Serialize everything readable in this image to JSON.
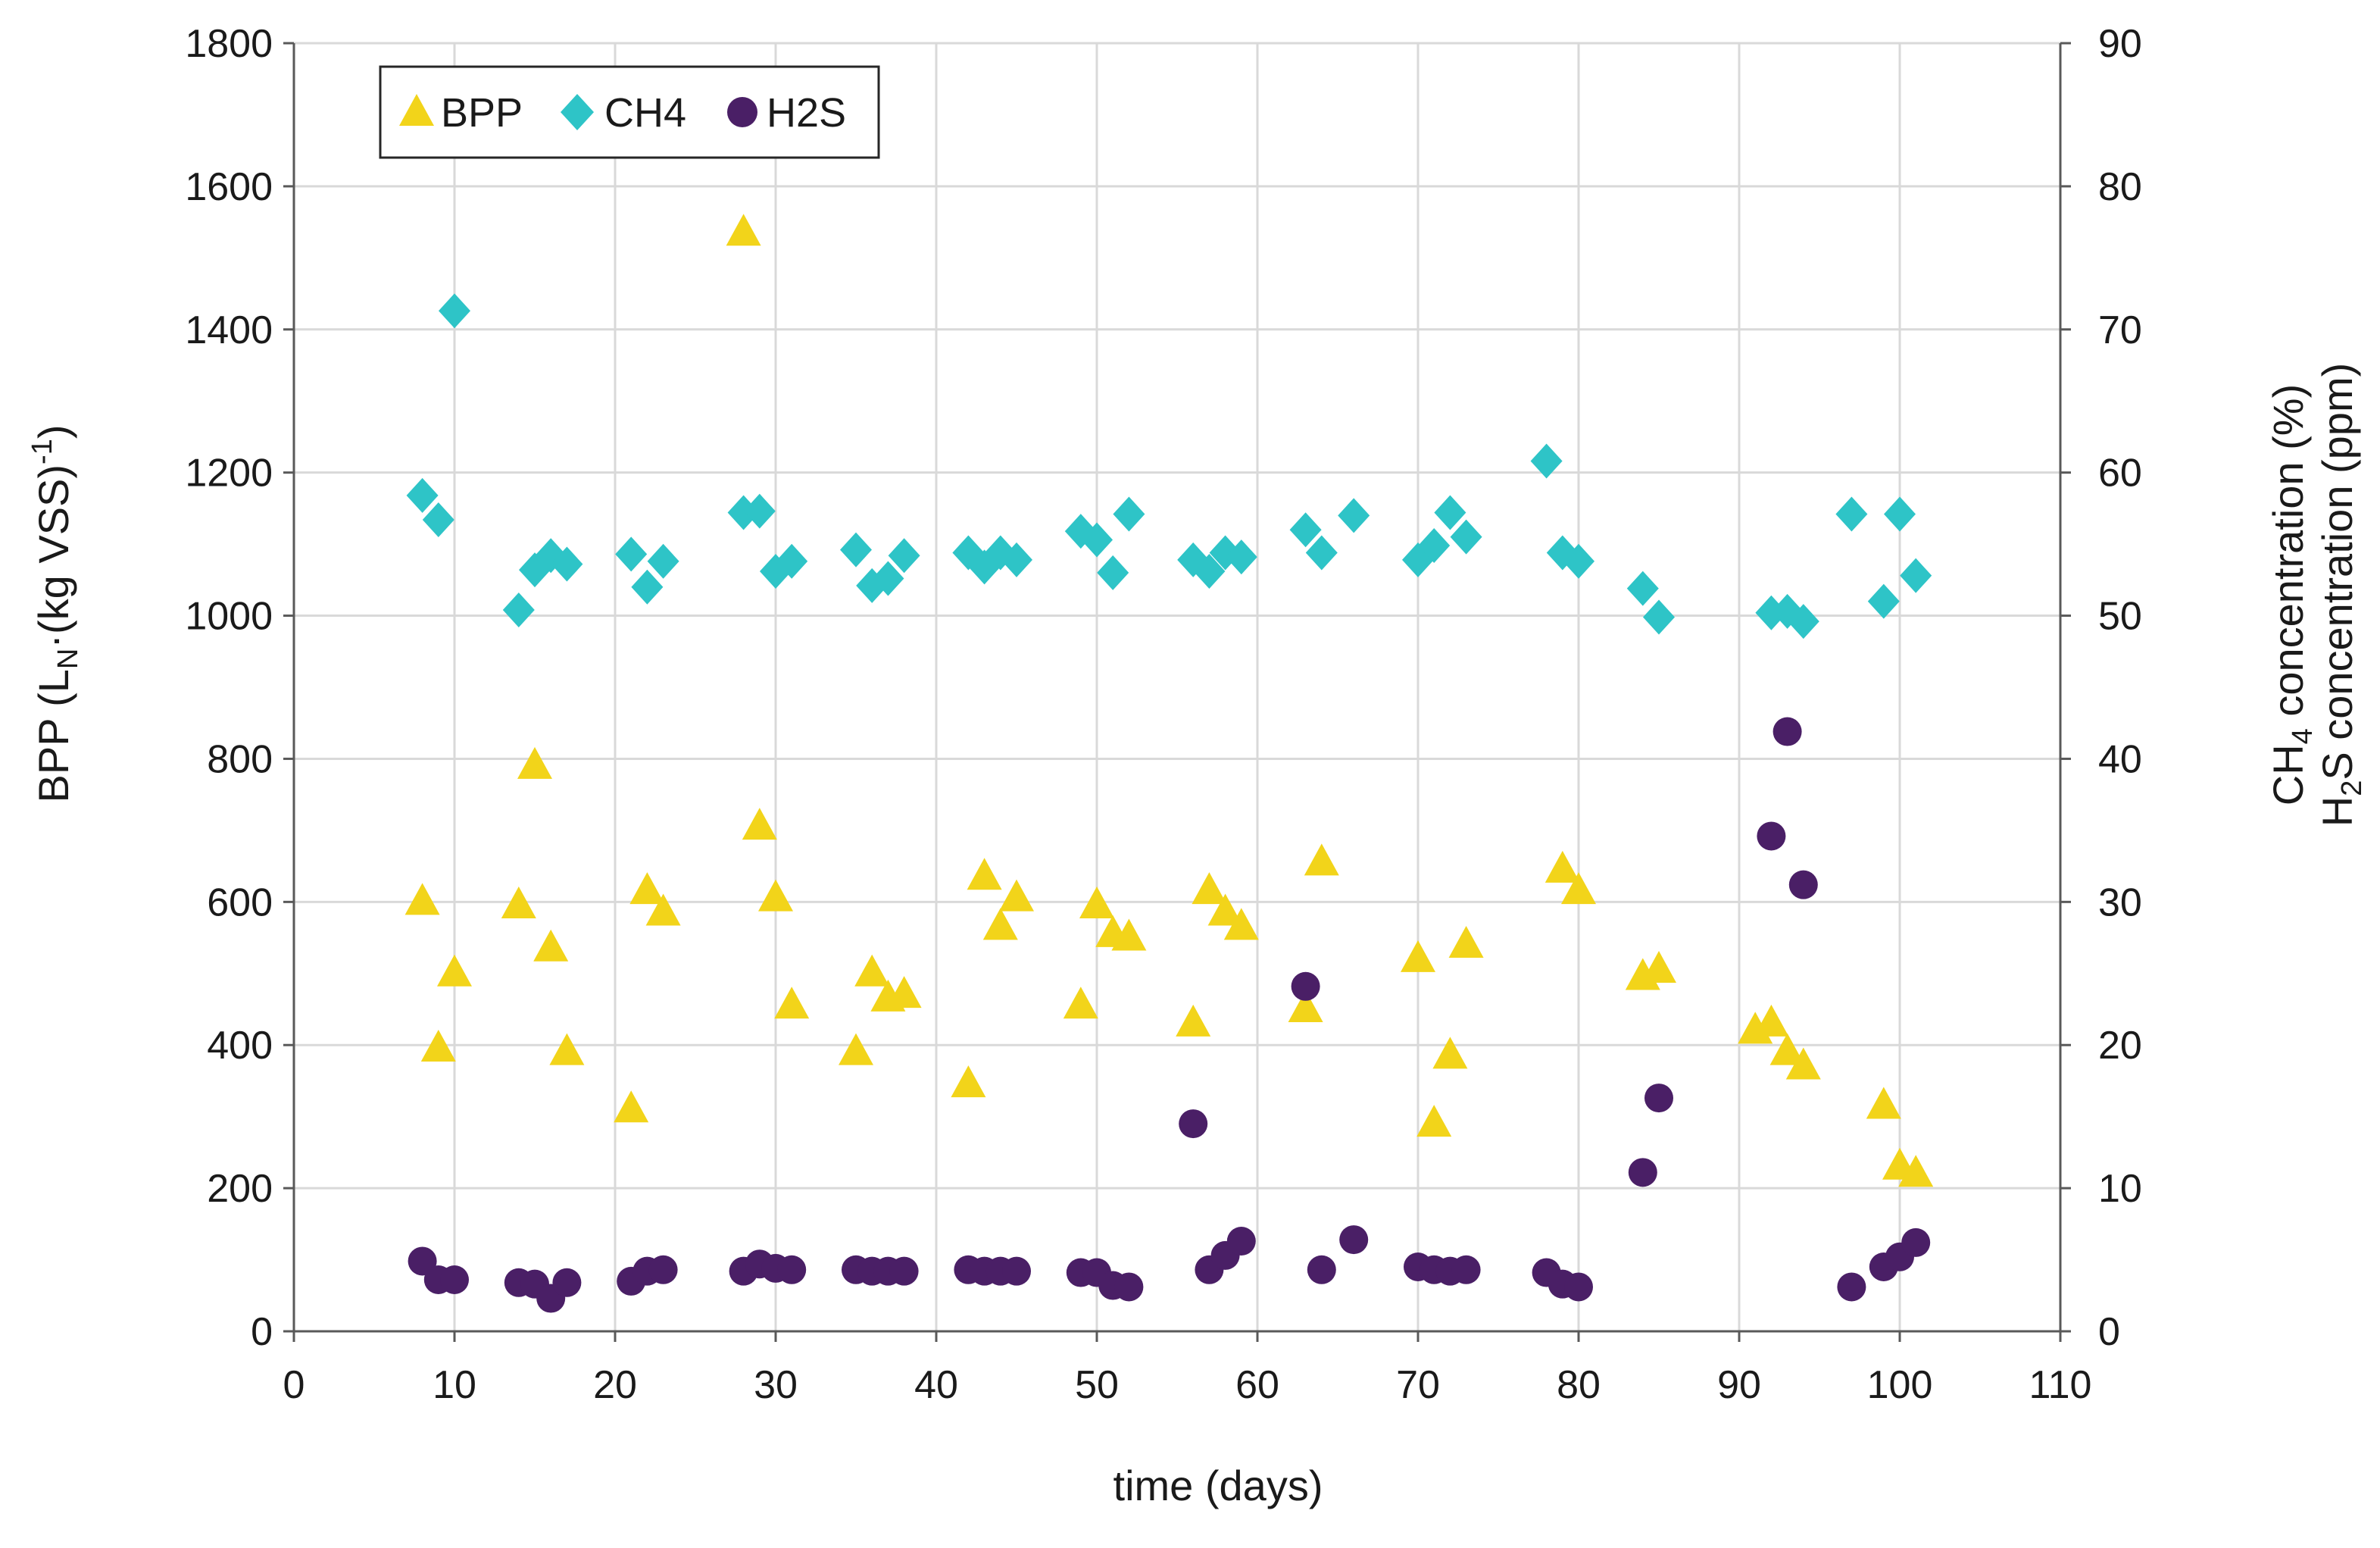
{
  "chart_data": {
    "type": "scatter",
    "xlabel": "time (days)",
    "ylabel": {
      "main": "BPP (L",
      "sub": "N",
      "mid": "·(kg VSS)",
      "sup": "-1"
    },
    "y2label": {
      "line1": {
        "pre": "CH",
        "sub": "4",
        "post": " concentration  (%)"
      },
      "line2": {
        "pre": "H",
        "sub": "2",
        "post": "S concentration  (ppm)"
      }
    },
    "xlim": [
      0,
      110
    ],
    "xticks": [
      "0",
      "10",
      "20",
      "30",
      "40",
      "50",
      "60",
      "70",
      "80",
      "90",
      "100",
      "110"
    ],
    "ylim": [
      0,
      1800
    ],
    "yticks": [
      "0",
      "200",
      "400",
      "600",
      "800",
      "1000",
      "1200",
      "1400",
      "1600",
      "1800"
    ],
    "y2lim": [
      0,
      90
    ],
    "y2ticks": [
      "0",
      "10",
      "20",
      "30",
      "40",
      "50",
      "60",
      "70",
      "80",
      "90"
    ],
    "grid": true,
    "legend_position": "top-left",
    "series": [
      {
        "name": "BPP",
        "axis": "left",
        "marker": "triangle",
        "color": "#f2d41a",
        "x": [
          8,
          9,
          10,
          14,
          15,
          16,
          17,
          21,
          22,
          23,
          28,
          29,
          30,
          31,
          35,
          36,
          37,
          38,
          42,
          43,
          44,
          45,
          49,
          50,
          51,
          52,
          56,
          57,
          58,
          59,
          63,
          64,
          70,
          71,
          72,
          73,
          79,
          80,
          84,
          85,
          91,
          92,
          93,
          94,
          99,
          100,
          101
        ],
        "y": [
          600,
          395,
          500,
          595,
          790,
          535,
          390,
          310,
          615,
          585,
          1535,
          705,
          605,
          455,
          390,
          500,
          465,
          470,
          345,
          635,
          565,
          605,
          455,
          595,
          555,
          550,
          430,
          615,
          585,
          565,
          450,
          655,
          520,
          290,
          385,
          540,
          645,
          615,
          495,
          505,
          420,
          430,
          390,
          370,
          315,
          230,
          220
        ]
      },
      {
        "name": "CH4",
        "axis": "right",
        "marker": "diamond",
        "color": "#2ec4c7",
        "x": [
          8,
          9,
          10,
          14,
          15,
          16,
          17,
          21,
          22,
          23,
          28,
          29,
          30,
          31,
          35,
          36,
          37,
          38,
          42,
          43,
          44,
          45,
          49,
          50,
          51,
          52,
          56,
          57,
          58,
          59,
          63,
          64,
          66,
          70,
          71,
          72,
          73,
          78,
          79,
          80,
          84,
          85,
          92,
          93,
          94,
          97,
          99,
          100,
          101
        ],
        "y": [
          58.4,
          56.7,
          71.3,
          50.4,
          53.2,
          54.2,
          53.6,
          54.3,
          52,
          53.8,
          57.2,
          57.3,
          53.1,
          53.8,
          54.6,
          52.1,
          52.6,
          54.2,
          54.4,
          53.4,
          54.4,
          53.9,
          55.9,
          55.3,
          53,
          57.1,
          53.9,
          53.1,
          54.4,
          54.1,
          56,
          54.4,
          57,
          53.9,
          54.9,
          57.2,
          55.5,
          60.8,
          54.4,
          53.8,
          51.9,
          49.9,
          50.2,
          50.3,
          49.6,
          57.1,
          51,
          57.1,
          52.8
        ]
      },
      {
        "name": "H2S",
        "axis": "right",
        "marker": "circle",
        "color": "#4a1f66",
        "x": [
          8,
          9,
          10,
          14,
          15,
          16,
          17,
          21,
          22,
          23,
          28,
          29,
          30,
          31,
          35,
          36,
          37,
          38,
          42,
          43,
          44,
          45,
          49,
          50,
          51,
          52,
          56,
          57,
          58,
          59,
          63,
          64,
          66,
          70,
          71,
          72,
          73,
          78,
          79,
          80,
          84,
          85,
          92,
          93,
          94,
          97,
          99,
          100,
          101
        ],
        "y": [
          4.9,
          3.6,
          3.6,
          3.4,
          3.3,
          2.3,
          3.4,
          3.5,
          4.2,
          4.3,
          4.2,
          4.7,
          4.4,
          4.3,
          4.3,
          4.2,
          4.2,
          4.2,
          4.3,
          4.2,
          4.2,
          4.2,
          4.1,
          4.1,
          3.2,
          3.1,
          14.5,
          4.3,
          5.3,
          6.3,
          24.1,
          4.3,
          6.4,
          4.5,
          4.3,
          4.2,
          4.3,
          4.1,
          3.3,
          3.1,
          11.1,
          16.3,
          34.6,
          41.9,
          31.2,
          3.1,
          4.5,
          5.2,
          6.2
        ]
      }
    ]
  }
}
